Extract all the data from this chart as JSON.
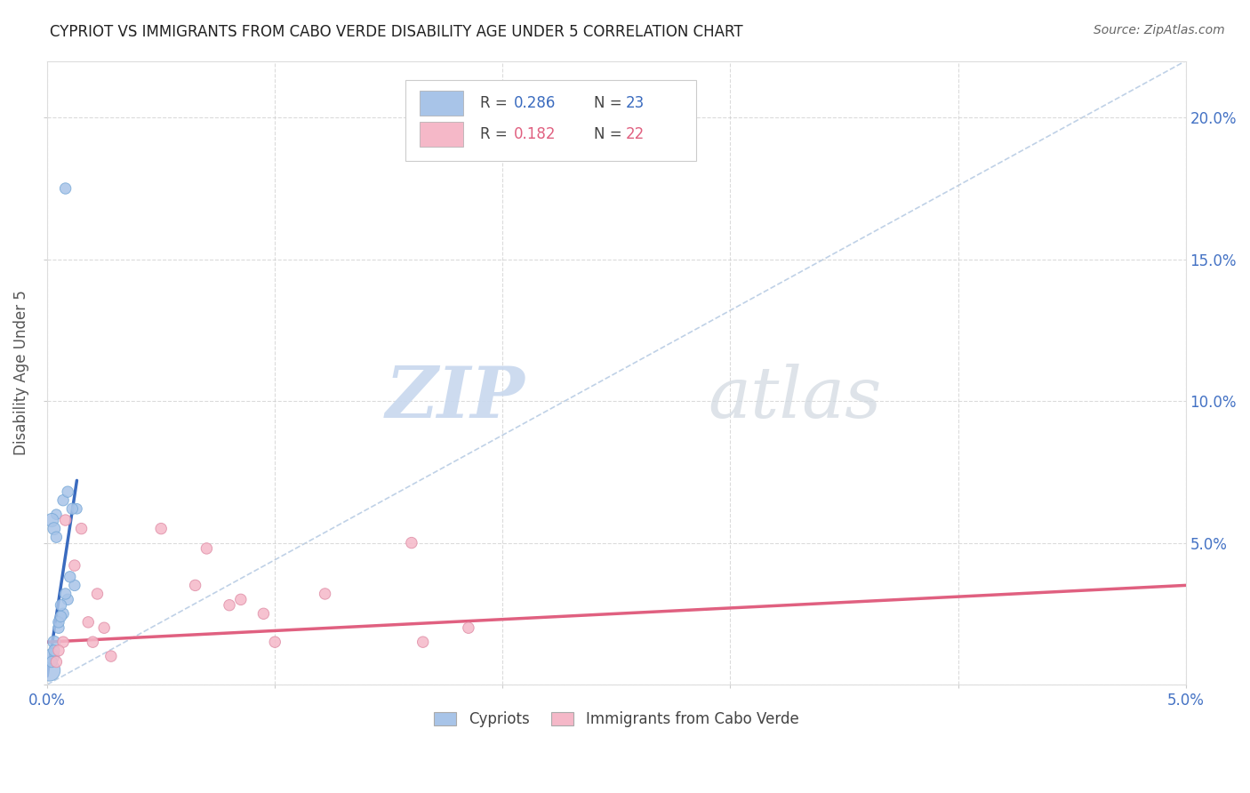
{
  "title": "CYPRIOT VS IMMIGRANTS FROM CABO VERDE DISABILITY AGE UNDER 5 CORRELATION CHART",
  "source": "Source: ZipAtlas.com",
  "ylabel_label": "Disability Age Under 5",
  "xlim": [
    0.0,
    5.0
  ],
  "ylim": [
    0.0,
    22.0
  ],
  "y_ticks": [
    0.0,
    5.0,
    10.0,
    15.0,
    20.0
  ],
  "x_ticks": [
    0.0,
    1.0,
    2.0,
    3.0,
    4.0,
    5.0
  ],
  "legend_r1": "0.286",
  "legend_n1": "23",
  "legend_r2": "0.182",
  "legend_n2": "22",
  "legend_label1": "Cypriots",
  "legend_label2": "Immigrants from Cabo Verde",
  "blue_color": "#a8c4e8",
  "pink_color": "#f5b8c8",
  "blue_line_color": "#3a6bbf",
  "pink_line_color": "#e06080",
  "diag_line_color": "#b8cce4",
  "watermark_color": "#dce8f5",
  "blue_scatter_x": [
    0.08,
    0.13,
    0.04,
    0.02,
    0.03,
    0.04,
    0.07,
    0.09,
    0.11,
    0.01,
    0.02,
    0.03,
    0.05,
    0.07,
    0.09,
    0.12,
    0.02,
    0.03,
    0.05,
    0.06,
    0.08,
    0.1,
    0.06
  ],
  "blue_scatter_y": [
    17.5,
    6.2,
    6.0,
    5.8,
    5.5,
    5.2,
    6.5,
    6.8,
    6.2,
    0.5,
    1.0,
    1.5,
    2.0,
    2.5,
    3.0,
    3.5,
    0.8,
    1.2,
    2.2,
    2.8,
    3.2,
    3.8,
    2.4
  ],
  "blue_scatter_size": [
    80,
    70,
    70,
    120,
    100,
    80,
    80,
    80,
    80,
    300,
    150,
    100,
    80,
    80,
    80,
    80,
    80,
    80,
    80,
    80,
    80,
    80,
    80
  ],
  "pink_scatter_x": [
    0.08,
    0.15,
    0.07,
    0.12,
    0.5,
    0.65,
    0.8,
    0.18,
    0.2,
    0.22,
    0.25,
    0.28,
    0.95,
    1.0,
    1.22,
    1.6,
    1.65,
    0.7,
    0.85,
    0.04,
    0.05,
    1.85
  ],
  "pink_scatter_y": [
    5.8,
    5.5,
    1.5,
    4.2,
    5.5,
    3.5,
    2.8,
    2.2,
    1.5,
    3.2,
    2.0,
    1.0,
    2.5,
    1.5,
    3.2,
    5.0,
    1.5,
    4.8,
    3.0,
    0.8,
    1.2,
    2.0
  ],
  "pink_scatter_size": [
    80,
    80,
    80,
    80,
    80,
    80,
    80,
    80,
    80,
    80,
    80,
    80,
    80,
    80,
    80,
    80,
    80,
    80,
    80,
    80,
    80,
    80
  ],
  "blue_line_x": [
    0.0,
    0.13
  ],
  "blue_line_y": [
    0.3,
    7.2
  ],
  "pink_line_x": [
    0.0,
    5.0
  ],
  "pink_line_y": [
    1.5,
    3.5
  ],
  "diag_line_x": [
    0.0,
    5.0
  ],
  "diag_line_y": [
    0.0,
    22.0
  ],
  "title_fontsize": 12,
  "tick_label_color": "#4472c4",
  "grid_color": "#cccccc"
}
